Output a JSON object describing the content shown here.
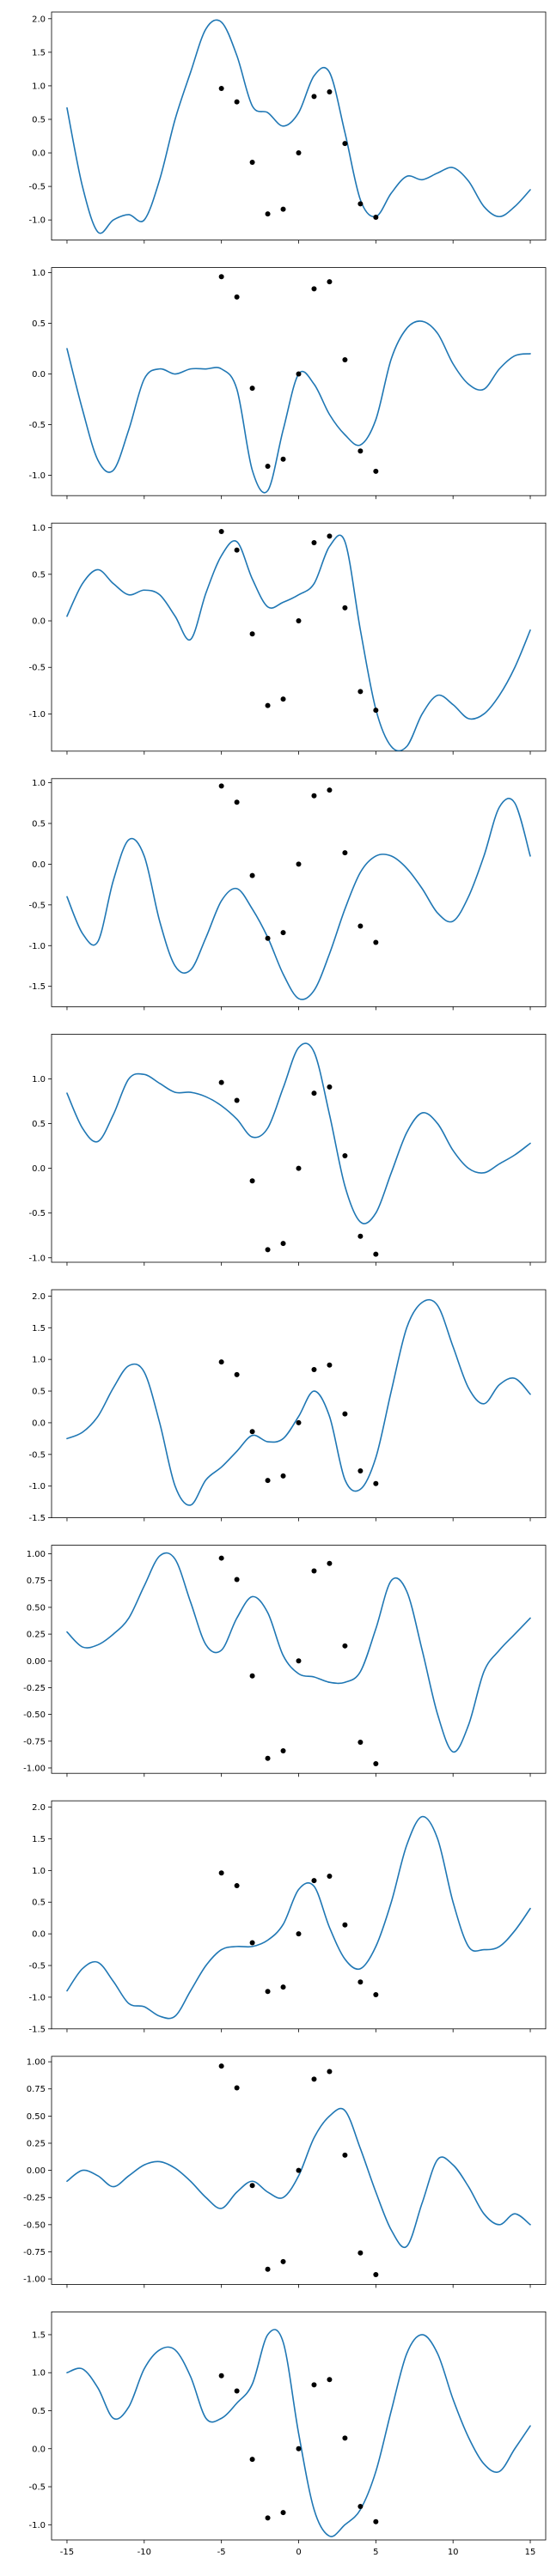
{
  "figure": {
    "line_color": "#1f77b4",
    "point_color": "#000000",
    "background": "#ffffff"
  },
  "chart_data": [
    {
      "type": "line",
      "xlim": [
        -16,
        16
      ],
      "ylim": [
        -1.3,
        2.1
      ],
      "yticks": [
        -1.0,
        -0.5,
        0.0,
        0.5,
        1.0,
        1.5,
        2.0
      ],
      "ytick_labels": [
        "-1.0",
        "-0.5",
        "0.0",
        "0.5",
        "1.0",
        "1.5",
        "2.0"
      ],
      "grid": false,
      "scatter": {
        "x": [
          -5,
          -4,
          -3,
          -2,
          -1,
          0,
          1,
          2,
          3,
          4,
          5
        ],
        "y": [
          0.96,
          0.76,
          -0.14,
          -0.91,
          -0.84,
          0.0,
          0.84,
          0.91,
          0.14,
          -0.76,
          -0.96
        ]
      },
      "curve": {
        "x": [
          -15,
          -14,
          -13,
          -12,
          -11,
          -10,
          -9,
          -8,
          -7,
          -6,
          -5,
          -4,
          -3,
          -2,
          -1,
          0,
          1,
          2,
          3,
          4,
          5,
          6,
          7,
          8,
          9,
          10,
          11,
          12,
          13,
          14,
          15
        ],
        "y": [
          0.67,
          -0.5,
          -1.18,
          -1.0,
          -0.92,
          -1.0,
          -0.4,
          0.5,
          1.2,
          1.85,
          1.95,
          1.45,
          0.7,
          0.6,
          0.4,
          0.6,
          1.15,
          1.2,
          0.3,
          -0.7,
          -0.95,
          -0.6,
          -0.35,
          -0.4,
          -0.3,
          -0.22,
          -0.42,
          -0.8,
          -0.95,
          -0.8,
          -0.55
        ]
      }
    },
    {
      "type": "line",
      "xlim": [
        -16,
        16
      ],
      "ylim": [
        -1.2,
        1.05
      ],
      "yticks": [
        -1.0,
        -0.5,
        0.0,
        0.5,
        1.0
      ],
      "ytick_labels": [
        "-1.0",
        "-0.5",
        "0.0",
        "0.5",
        "1.0"
      ],
      "grid": false,
      "scatter": {
        "x": [
          -5,
          -4,
          -3,
          -2,
          -1,
          0,
          1,
          2,
          3,
          4,
          5
        ],
        "y": [
          0.96,
          0.76,
          -0.14,
          -0.91,
          -0.84,
          0.0,
          0.84,
          0.91,
          0.14,
          -0.76,
          -0.96
        ]
      },
      "curve": {
        "x": [
          -15,
          -14,
          -13,
          -12,
          -11,
          -10,
          -9,
          -8,
          -7,
          -6,
          -5,
          -4,
          -3,
          -2,
          -1,
          0,
          1,
          2,
          3,
          4,
          5,
          6,
          7,
          8,
          9,
          10,
          11,
          12,
          13,
          14,
          15
        ],
        "y": [
          0.25,
          -0.35,
          -0.85,
          -0.95,
          -0.55,
          -0.05,
          0.05,
          0.0,
          0.05,
          0.05,
          0.05,
          -0.15,
          -0.95,
          -1.15,
          -0.55,
          0.0,
          -0.1,
          -0.4,
          -0.6,
          -0.7,
          -0.45,
          0.15,
          0.45,
          0.52,
          0.4,
          0.1,
          -0.1,
          -0.15,
          0.05,
          0.18,
          0.2
        ]
      }
    },
    {
      "type": "line",
      "xlim": [
        -16,
        16
      ],
      "ylim": [
        -1.4,
        1.05
      ],
      "yticks": [
        -1.0,
        -0.5,
        0.0,
        0.5,
        1.0
      ],
      "ytick_labels": [
        "-1.0",
        "-0.5",
        "0.0",
        "0.5",
        "1.0"
      ],
      "grid": false,
      "scatter": {
        "x": [
          -5,
          -4,
          -3,
          -2,
          -1,
          0,
          1,
          2,
          3,
          4,
          5
        ],
        "y": [
          0.96,
          0.76,
          -0.14,
          -0.91,
          -0.84,
          0.0,
          0.84,
          0.91,
          0.14,
          -0.76,
          -0.96
        ]
      },
      "curve": {
        "x": [
          -15,
          -14,
          -13,
          -12,
          -11,
          -10,
          -9,
          -8,
          -7,
          -6,
          -5,
          -4,
          -3,
          -2,
          -1,
          0,
          1,
          2,
          3,
          4,
          5,
          6,
          7,
          8,
          9,
          10,
          11,
          12,
          13,
          14,
          15
        ],
        "y": [
          0.05,
          0.4,
          0.55,
          0.4,
          0.28,
          0.33,
          0.28,
          0.05,
          -0.2,
          0.3,
          0.7,
          0.85,
          0.45,
          0.15,
          0.2,
          0.28,
          0.4,
          0.8,
          0.85,
          -0.1,
          -0.95,
          -1.35,
          -1.35,
          -1.0,
          -0.8,
          -0.9,
          -1.05,
          -1.0,
          -0.8,
          -0.5,
          -0.1
        ]
      }
    },
    {
      "type": "line",
      "xlim": [
        -16,
        16
      ],
      "ylim": [
        -1.75,
        1.05
      ],
      "yticks": [
        -1.5,
        -1.0,
        -0.5,
        0.0,
        0.5,
        1.0
      ],
      "ytick_labels": [
        "-1.5",
        "-1.0",
        "-0.5",
        "0.0",
        "0.5",
        "1.0"
      ],
      "grid": false,
      "scatter": {
        "x": [
          -5,
          -4,
          -3,
          -2,
          -1,
          0,
          1,
          2,
          3,
          4,
          5
        ],
        "y": [
          0.96,
          0.76,
          -0.14,
          -0.91,
          -0.84,
          0.0,
          0.84,
          0.91,
          0.14,
          -0.76,
          -0.96
        ]
      },
      "curve": {
        "x": [
          -15,
          -14,
          -13,
          -12,
          -11,
          -10,
          -9,
          -8,
          -7,
          -6,
          -5,
          -4,
          -3,
          -2,
          -1,
          0,
          1,
          2,
          3,
          4,
          5,
          6,
          7,
          8,
          9,
          10,
          11,
          12,
          13,
          14,
          15
        ],
        "y": [
          -0.4,
          -0.85,
          -0.95,
          -0.2,
          0.3,
          0.1,
          -0.7,
          -1.25,
          -1.3,
          -0.9,
          -0.45,
          -0.3,
          -0.55,
          -0.9,
          -1.35,
          -1.65,
          -1.55,
          -1.1,
          -0.55,
          -0.1,
          0.1,
          0.1,
          -0.05,
          -0.3,
          -0.6,
          -0.7,
          -0.4,
          0.1,
          0.7,
          0.75,
          0.1
        ]
      }
    },
    {
      "type": "line",
      "xlim": [
        -16,
        16
      ],
      "ylim": [
        -1.05,
        1.5
      ],
      "yticks": [
        -1.0,
        -0.5,
        0.0,
        0.5,
        1.0
      ],
      "ytick_labels": [
        "-1.0",
        "-0.5",
        "0.0",
        "0.5",
        "1.0"
      ],
      "grid": false,
      "scatter": {
        "x": [
          -5,
          -4,
          -3,
          -2,
          -1,
          0,
          1,
          2,
          3,
          4,
          5
        ],
        "y": [
          0.96,
          0.76,
          -0.14,
          -0.91,
          -0.84,
          0.0,
          0.84,
          0.91,
          0.14,
          -0.76,
          -0.96
        ]
      },
      "curve": {
        "x": [
          -15,
          -14,
          -13,
          -12,
          -11,
          -10,
          -9,
          -8,
          -7,
          -6,
          -5,
          -4,
          -3,
          -2,
          -1,
          0,
          1,
          2,
          3,
          4,
          5,
          6,
          7,
          8,
          9,
          10,
          11,
          12,
          13,
          14,
          15
        ],
        "y": [
          0.84,
          0.45,
          0.3,
          0.6,
          1.0,
          1.05,
          0.95,
          0.85,
          0.85,
          0.8,
          0.7,
          0.55,
          0.35,
          0.45,
          0.9,
          1.35,
          1.3,
          0.6,
          -0.2,
          -0.6,
          -0.5,
          -0.05,
          0.4,
          0.62,
          0.5,
          0.2,
          0.0,
          -0.05,
          0.05,
          0.15,
          0.28
        ]
      }
    },
    {
      "type": "line",
      "xlim": [
        -16,
        16
      ],
      "ylim": [
        -1.5,
        2.1
      ],
      "yticks": [
        -1.5,
        -1.0,
        -0.5,
        0.0,
        0.5,
        1.0,
        1.5,
        2.0
      ],
      "ytick_labels": [
        "-1.5",
        "-1.0",
        "-0.5",
        "0.0",
        "0.5",
        "1.0",
        "1.5",
        "2.0"
      ],
      "grid": false,
      "scatter": {
        "x": [
          -5,
          -4,
          -3,
          -2,
          -1,
          0,
          1,
          2,
          3,
          4,
          5
        ],
        "y": [
          0.96,
          0.76,
          -0.14,
          -0.91,
          -0.84,
          0.0,
          0.84,
          0.91,
          0.14,
          -0.76,
          -0.96
        ]
      },
      "curve": {
        "x": [
          -15,
          -14,
          -13,
          -12,
          -11,
          -10,
          -9,
          -8,
          -7,
          -6,
          -5,
          -4,
          -3,
          -2,
          -1,
          0,
          1,
          2,
          3,
          4,
          5,
          6,
          7,
          8,
          9,
          10,
          11,
          12,
          13,
          14,
          15
        ],
        "y": [
          -0.25,
          -0.15,
          0.1,
          0.55,
          0.9,
          0.8,
          0.0,
          -1.0,
          -1.3,
          -0.9,
          -0.7,
          -0.45,
          -0.2,
          -0.3,
          -0.25,
          0.1,
          0.5,
          0.1,
          -0.9,
          -1.05,
          -0.55,
          0.5,
          1.5,
          1.9,
          1.85,
          1.2,
          0.55,
          0.3,
          0.6,
          0.7,
          0.45
        ]
      }
    },
    {
      "type": "line",
      "xlim": [
        -16,
        16
      ],
      "ylim": [
        -1.05,
        1.08
      ],
      "yticks": [
        -1.0,
        -0.75,
        -0.5,
        -0.25,
        0.0,
        0.25,
        0.5,
        0.75,
        1.0
      ],
      "ytick_labels": [
        "-1.00",
        "-0.75",
        "-0.50",
        "-0.25",
        "0.00",
        "0.25",
        "0.50",
        "0.75",
        "1.00"
      ],
      "grid": false,
      "scatter": {
        "x": [
          -5,
          -4,
          -3,
          -2,
          -1,
          0,
          1,
          2,
          3,
          4,
          5
        ],
        "y": [
          0.96,
          0.76,
          -0.14,
          -0.91,
          -0.84,
          0.0,
          0.84,
          0.91,
          0.14,
          -0.76,
          -0.96
        ]
      },
      "curve": {
        "x": [
          -15,
          -14,
          -13,
          -12,
          -11,
          -10,
          -9,
          -8,
          -7,
          -6,
          -5,
          -4,
          -3,
          -2,
          -1,
          0,
          1,
          2,
          3,
          4,
          5,
          6,
          7,
          8,
          9,
          10,
          11,
          12,
          13,
          14,
          15
        ],
        "y": [
          0.27,
          0.13,
          0.15,
          0.25,
          0.4,
          0.7,
          0.98,
          0.95,
          0.55,
          0.15,
          0.1,
          0.4,
          0.6,
          0.45,
          0.05,
          -0.12,
          -0.15,
          -0.2,
          -0.2,
          -0.1,
          0.3,
          0.75,
          0.65,
          0.1,
          -0.5,
          -0.85,
          -0.6,
          -0.1,
          0.1,
          0.25,
          0.4
        ]
      }
    },
    {
      "type": "line",
      "xlim": [
        -16,
        16
      ],
      "ylim": [
        -1.5,
        2.1
      ],
      "yticks": [
        -1.5,
        -1.0,
        -0.5,
        0.0,
        0.5,
        1.0,
        1.5,
        2.0
      ],
      "ytick_labels": [
        "-1.5",
        "-1.0",
        "-0.5",
        "0.0",
        "0.5",
        "1.0",
        "1.5",
        "2.0"
      ],
      "grid": false,
      "scatter": {
        "x": [
          -5,
          -4,
          -3,
          -2,
          -1,
          0,
          1,
          2,
          3,
          4,
          5
        ],
        "y": [
          0.96,
          0.76,
          -0.14,
          -0.91,
          -0.84,
          0.0,
          0.84,
          0.91,
          0.14,
          -0.76,
          -0.96
        ]
      },
      "curve": {
        "x": [
          -15,
          -14,
          -13,
          -12,
          -11,
          -10,
          -9,
          -8,
          -7,
          -6,
          -5,
          -4,
          -3,
          -2,
          -1,
          0,
          1,
          2,
          3,
          4,
          5,
          6,
          7,
          8,
          9,
          10,
          11,
          12,
          13,
          14,
          15
        ],
        "y": [
          -0.9,
          -0.55,
          -0.45,
          -0.75,
          -1.1,
          -1.15,
          -1.3,
          -1.3,
          -0.9,
          -0.5,
          -0.25,
          -0.2,
          -0.2,
          -0.1,
          0.15,
          0.7,
          0.75,
          0.1,
          -0.4,
          -0.55,
          -0.2,
          0.5,
          1.4,
          1.85,
          1.5,
          0.5,
          -0.2,
          -0.25,
          -0.2,
          0.05,
          0.4
        ]
      }
    },
    {
      "type": "line",
      "xlim": [
        -16,
        16
      ],
      "ylim": [
        -1.05,
        1.05
      ],
      "yticks": [
        -1.0,
        -0.75,
        -0.5,
        -0.25,
        0.0,
        0.25,
        0.5,
        0.75,
        1.0
      ],
      "ytick_labels": [
        "-1.00",
        "-0.75",
        "-0.50",
        "-0.25",
        "0.00",
        "0.25",
        "0.50",
        "0.75",
        "1.00"
      ],
      "grid": false,
      "scatter": {
        "x": [
          -5,
          -4,
          -3,
          -2,
          -1,
          0,
          1,
          2,
          3,
          4,
          5
        ],
        "y": [
          0.96,
          0.76,
          -0.14,
          -0.91,
          -0.84,
          0.0,
          0.84,
          0.91,
          0.14,
          -0.76,
          -0.96
        ]
      },
      "curve": {
        "x": [
          -15,
          -14,
          -13,
          -12,
          -11,
          -10,
          -9,
          -8,
          -7,
          -6,
          -5,
          -4,
          -3,
          -2,
          -1,
          0,
          1,
          2,
          3,
          4,
          5,
          6,
          7,
          8,
          9,
          10,
          11,
          12,
          13,
          14,
          15
        ],
        "y": [
          -0.1,
          0.0,
          -0.05,
          -0.15,
          -0.05,
          0.05,
          0.08,
          0.02,
          -0.1,
          -0.25,
          -0.35,
          -0.2,
          -0.1,
          -0.2,
          -0.25,
          -0.05,
          0.3,
          0.5,
          0.55,
          0.2,
          -0.2,
          -0.55,
          -0.7,
          -0.3,
          0.1,
          0.05,
          -0.15,
          -0.4,
          -0.5,
          -0.4,
          -0.5
        ]
      }
    },
    {
      "type": "line",
      "xlim": [
        -16,
        16
      ],
      "ylim": [
        -1.2,
        1.8
      ],
      "yticks": [
        -1.0,
        -0.5,
        0.0,
        0.5,
        1.0,
        1.5
      ],
      "ytick_labels": [
        "-1.0",
        "-0.5",
        "0.0",
        "0.5",
        "1.0",
        "1.5"
      ],
      "grid": false,
      "xticks": [
        -15,
        -10,
        -5,
        0,
        5,
        10,
        15
      ],
      "xtick_labels": [
        "-15",
        "-10",
        "-5",
        "0",
        "5",
        "10",
        "15"
      ],
      "scatter": {
        "x": [
          -5,
          -4,
          -3,
          -2,
          -1,
          0,
          1,
          2,
          3,
          4,
          5
        ],
        "y": [
          0.96,
          0.76,
          -0.14,
          -0.91,
          -0.84,
          0.0,
          0.84,
          0.91,
          0.14,
          -0.76,
          -0.96
        ]
      },
      "curve": {
        "x": [
          -15,
          -14,
          -13,
          -12,
          -11,
          -10,
          -9,
          -8,
          -7,
          -6,
          -5,
          -4,
          -3,
          -2,
          -1,
          0,
          1,
          2,
          3,
          4,
          5,
          6,
          7,
          8,
          9,
          10,
          11,
          12,
          13,
          14,
          15
        ],
        "y": [
          1.0,
          1.05,
          0.8,
          0.4,
          0.55,
          1.05,
          1.3,
          1.3,
          0.95,
          0.4,
          0.4,
          0.6,
          0.85,
          1.5,
          1.4,
          0.2,
          -0.8,
          -1.15,
          -1.0,
          -0.8,
          -0.3,
          0.5,
          1.25,
          1.5,
          1.25,
          0.65,
          0.15,
          -0.2,
          -0.3,
          0.0,
          0.3
        ]
      }
    }
  ]
}
